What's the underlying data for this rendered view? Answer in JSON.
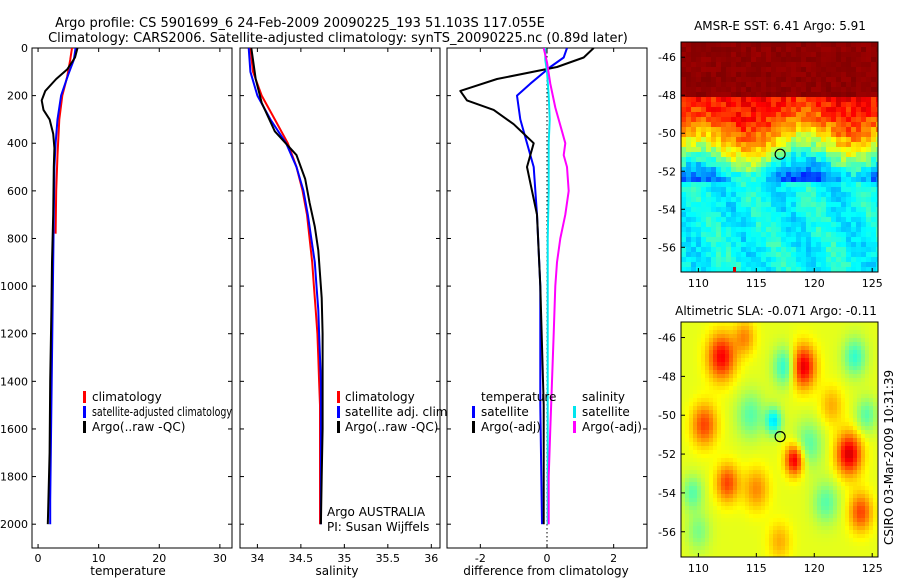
{
  "title": {
    "line1": "Argo profile: CS 5901699_6 24-Feb-2009 20090225_193 51.103S 117.055E",
    "line2": "Climatology: CARS2006. Satellite-adjusted climatology: synTS_20090225.nc (0.89d later)"
  },
  "colors": {
    "climatology": "#ff0000",
    "satellite": "#0000ff",
    "argo": "#000000",
    "sal_satellite": "#00e5ee",
    "sal_argo": "#ff00ff"
  },
  "chart_data": [
    {
      "type": "line",
      "xlabel": "temperature",
      "xlim": [
        -1,
        32
      ],
      "xticks": [
        0,
        10,
        20,
        30
      ],
      "ylim": [
        2100,
        0
      ],
      "yticks": [
        0,
        200,
        400,
        600,
        800,
        1000,
        1200,
        1400,
        1600,
        1800,
        2000
      ],
      "series": [
        {
          "name": "climatology",
          "color": "#ff0000",
          "points": [
            [
              5.6,
              0
            ],
            [
              5.3,
              50
            ],
            [
              4.8,
              120
            ],
            [
              4.0,
              200
            ],
            [
              3.5,
              300
            ],
            [
              3.2,
              450
            ],
            [
              3.0,
              600
            ],
            [
              2.9,
              780
            ]
          ]
        },
        {
          "name": "satellite-adjusted climatology",
          "color": "#0000ff",
          "points": [
            [
              6.2,
              0
            ],
            [
              5.9,
              50
            ],
            [
              5.0,
              110
            ],
            [
              3.8,
              200
            ],
            [
              3.2,
              300
            ],
            [
              2.9,
              400
            ],
            [
              2.7,
              500
            ],
            [
              2.6,
              700
            ],
            [
              2.5,
              900
            ],
            [
              2.4,
              1100
            ],
            [
              2.3,
              1300
            ],
            [
              2.2,
              1500
            ],
            [
              2.1,
              1700
            ],
            [
              2.0,
              1900
            ],
            [
              2.0,
              2000
            ]
          ]
        },
        {
          "name": "Argo(..raw -QC)",
          "color": "#000000",
          "points": [
            [
              6.5,
              0
            ],
            [
              6.1,
              40
            ],
            [
              4.8,
              90
            ],
            [
              3.0,
              130
            ],
            [
              1.2,
              180
            ],
            [
              0.6,
              220
            ],
            [
              0.9,
              260
            ],
            [
              1.9,
              300
            ],
            [
              2.5,
              360
            ],
            [
              2.7,
              420
            ],
            [
              2.6,
              500
            ],
            [
              2.5,
              700
            ],
            [
              2.3,
              900
            ],
            [
              2.2,
              1100
            ],
            [
              2.0,
              1400
            ],
            [
              1.9,
              1700
            ],
            [
              1.6,
              2000
            ]
          ]
        }
      ],
      "legend": {
        "placement": "bottom-right",
        "entries": [
          "climatology",
          "satellite-adjusted climatology",
          "Argo(..raw -QC)"
        ]
      }
    },
    {
      "type": "line",
      "xlabel": "salinity",
      "xlim": [
        33.8,
        36.1
      ],
      "xticks": [
        34,
        34.5,
        35,
        35.5,
        36
      ],
      "ylim": [
        2100,
        0
      ],
      "series": [
        {
          "name": "climatology",
          "color": "#ff0000",
          "points": [
            [
              33.92,
              0
            ],
            [
              33.95,
              100
            ],
            [
              34.05,
              200
            ],
            [
              34.2,
              300
            ],
            [
              34.35,
              400
            ],
            [
              34.45,
              500
            ],
            [
              34.52,
              600
            ],
            [
              34.57,
              700
            ],
            [
              34.6,
              800
            ],
            [
              34.63,
              900
            ],
            [
              34.65,
              1000
            ],
            [
              34.67,
              1100
            ],
            [
              34.69,
              1200
            ],
            [
              34.7,
              1300
            ],
            [
              34.71,
              1400
            ],
            [
              34.72,
              1500
            ],
            [
              34.72,
              1600
            ],
            [
              34.72,
              1700
            ],
            [
              34.72,
              1800
            ],
            [
              34.72,
              1900
            ],
            [
              34.72,
              2000
            ]
          ]
        },
        {
          "name": "satellite adj. clim.",
          "color": "#0000ff",
          "points": [
            [
              33.9,
              0
            ],
            [
              33.92,
              100
            ],
            [
              34.0,
              200
            ],
            [
              34.15,
              300
            ],
            [
              34.33,
              400
            ],
            [
              34.45,
              500
            ],
            [
              34.53,
              600
            ],
            [
              34.58,
              700
            ],
            [
              34.62,
              800
            ],
            [
              34.66,
              900
            ],
            [
              34.68,
              1000
            ],
            [
              34.7,
              1100
            ],
            [
              34.71,
              1200
            ],
            [
              34.72,
              1300
            ],
            [
              34.73,
              1400
            ],
            [
              34.73,
              1500
            ],
            [
              34.73,
              1600
            ],
            [
              34.73,
              1700
            ],
            [
              34.73,
              1800
            ],
            [
              34.73,
              1900
            ],
            [
              34.73,
              2000
            ]
          ]
        },
        {
          "name": "Argo(..raw -QC)",
          "color": "#000000",
          "points": [
            [
              33.93,
              0
            ],
            [
              33.95,
              50
            ],
            [
              33.98,
              130
            ],
            [
              34.05,
              230
            ],
            [
              34.2,
              350
            ],
            [
              34.45,
              450
            ],
            [
              34.55,
              550
            ],
            [
              34.6,
              650
            ],
            [
              34.66,
              750
            ],
            [
              34.7,
              850
            ],
            [
              34.72,
              950
            ],
            [
              34.74,
              1050
            ],
            [
              34.75,
              1200
            ],
            [
              34.75,
              1400
            ],
            [
              34.75,
              1600
            ],
            [
              34.74,
              1800
            ],
            [
              34.73,
              2000
            ]
          ]
        }
      ],
      "legend": {
        "placement": "bottom-right",
        "entries": [
          "climatology",
          "satellite adj. clim.",
          "Argo(..raw -QC)"
        ]
      },
      "annotations": [
        "Argo AUSTRALIA",
        "PI: Susan Wijffels"
      ]
    },
    {
      "type": "line",
      "xlabel": "difference from climatology",
      "xlim": [
        -3,
        3
      ],
      "xticks": [
        -2,
        0,
        2
      ],
      "ylim": [
        2100,
        0
      ],
      "series": [
        {
          "name": "temperature satellite",
          "color": "#0000ff",
          "points": [
            [
              0.6,
              0
            ],
            [
              0.5,
              40
            ],
            [
              0.1,
              80
            ],
            [
              -0.5,
              150
            ],
            [
              -0.9,
              200
            ],
            [
              -0.8,
              300
            ],
            [
              -0.6,
              400
            ],
            [
              -0.4,
              500
            ],
            [
              -0.3,
              700
            ],
            [
              -0.2,
              1000
            ],
            [
              -0.2,
              1500
            ],
            [
              -0.15,
              2000
            ]
          ]
        },
        {
          "name": "temperature Argo(-adj)",
          "color": "#000000",
          "points": [
            [
              1.4,
              0
            ],
            [
              1.1,
              40
            ],
            [
              0.3,
              80
            ],
            [
              -1.5,
              130
            ],
            [
              -2.6,
              180
            ],
            [
              -2.4,
              220
            ],
            [
              -1.6,
              260
            ],
            [
              -1.0,
              320
            ],
            [
              -0.4,
              400
            ],
            [
              -0.6,
              500
            ],
            [
              -0.3,
              700
            ],
            [
              -0.2,
              1000
            ],
            [
              -0.1,
              1500
            ],
            [
              -0.1,
              2000
            ]
          ]
        },
        {
          "name": "salinity satellite",
          "color": "#00e5ee",
          "points": [
            [
              -0.05,
              0
            ],
            [
              -0.05,
              50
            ],
            [
              0,
              100
            ],
            [
              0.05,
              200
            ],
            [
              0.08,
              300
            ],
            [
              0.05,
              400
            ],
            [
              0.05,
              600
            ],
            [
              0.02,
              800
            ],
            [
              0.02,
              1000
            ],
            [
              0.02,
              1400
            ],
            [
              0.02,
              1800
            ],
            [
              0.02,
              2000
            ]
          ]
        },
        {
          "name": "salinity Argo(-adj)",
          "color": "#ff00ff",
          "points": [
            [
              -0.1,
              0
            ],
            [
              0,
              60
            ],
            [
              0.1,
              150
            ],
            [
              0.25,
              250
            ],
            [
              0.45,
              350
            ],
            [
              0.55,
              400
            ],
            [
              0.5,
              450
            ],
            [
              0.6,
              500
            ],
            [
              0.65,
              600
            ],
            [
              0.55,
              700
            ],
            [
              0.4,
              800
            ],
            [
              0.3,
              900
            ],
            [
              0.25,
              1000
            ],
            [
              0.2,
              1200
            ],
            [
              0.15,
              1400
            ],
            [
              0.1,
              1600
            ],
            [
              0.05,
              1800
            ],
            [
              0.05,
              2000
            ]
          ]
        }
      ],
      "legend": {
        "placement": "bottom-right",
        "entries": [
          "temperature",
          "satellite",
          "Argo(-adj)",
          "salinity",
          "satellite",
          "Argo(-adj)"
        ]
      }
    },
    {
      "type": "heatmap",
      "title": "AMSR-E SST: 6.41 Argo: 5.91",
      "xlim": [
        108.5,
        125.5
      ],
      "xticks": [
        110,
        115,
        120,
        125
      ],
      "ylim": [
        -57.3,
        -45.2
      ],
      "yticks": [
        -56,
        -54,
        -52,
        -50,
        -48,
        -46
      ],
      "marker": {
        "lon": 117.055,
        "lat": -51.103
      }
    },
    {
      "type": "heatmap",
      "title": "Altimetric SLA: -0.071 Argo: -0.11",
      "xlim": [
        108.5,
        125.5
      ],
      "xticks": [
        110,
        115,
        120,
        125
      ],
      "ylim": [
        -57.3,
        -45.2
      ],
      "yticks": [
        -56,
        -54,
        -52,
        -50,
        -48,
        -46
      ],
      "marker": {
        "lon": 117.055,
        "lat": -51.103
      }
    }
  ],
  "timestamp": "CSIRO 03-Mar-2009 10:31:39"
}
